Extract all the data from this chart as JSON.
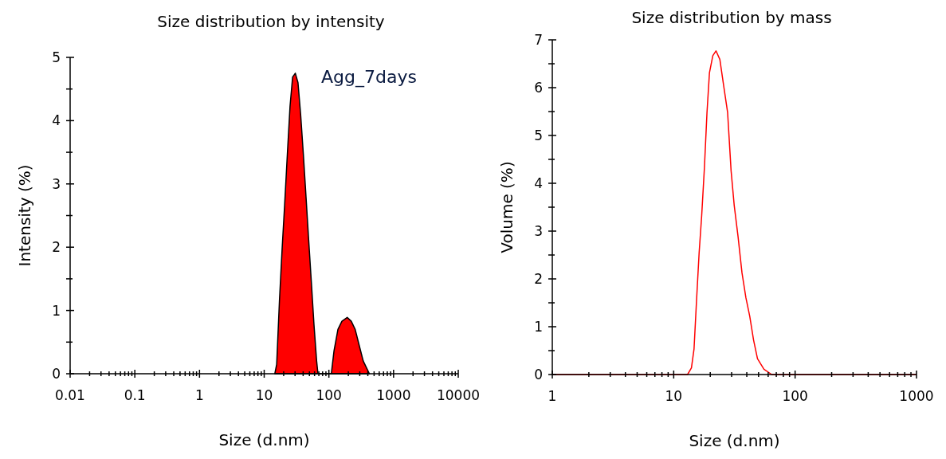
{
  "chart_data": [
    {
      "type": "area",
      "title": "Size distribution by intensity",
      "xlabel": "Size (d.nm)",
      "ylabel": "Intensity (%)",
      "log": "x",
      "annotations": [
        "Agg_7days"
      ],
      "xlim": [
        0.01,
        10000
      ],
      "ylim": [
        0,
        5
      ],
      "xticks": [
        0.01,
        {
          "value": 0.02,
          "label": null
        },
        {
          "value": 0.03,
          "label": null
        },
        {
          "value": 0.04,
          "label": null
        },
        {
          "value": 0.05,
          "label": null
        },
        {
          "value": 0.06,
          "label": null
        },
        {
          "value": 0.07,
          "label": null
        },
        {
          "value": 0.08,
          "label": null
        },
        {
          "value": 0.09,
          "label": null
        },
        0.1,
        {
          "value": 0.2,
          "label": null
        },
        {
          "value": 0.3,
          "label": null
        },
        {
          "value": 0.4,
          "label": null
        },
        {
          "value": 0.5,
          "label": null
        },
        {
          "value": 0.6,
          "label": null
        },
        {
          "value": 0.7,
          "label": null
        },
        {
          "value": 0.8,
          "label": null
        },
        {
          "value": 0.9,
          "label": null
        },
        1,
        {
          "value": 2,
          "label": null
        },
        {
          "value": 3,
          "label": null
        },
        {
          "value": 4,
          "label": null
        },
        {
          "value": 5,
          "label": null
        },
        {
          "value": 6,
          "label": null
        },
        {
          "value": 7,
          "label": null
        },
        {
          "value": 8,
          "label": null
        },
        {
          "value": 9,
          "label": null
        },
        10,
        {
          "value": 20,
          "label": null
        },
        {
          "value": 30,
          "label": null
        },
        {
          "value": 40,
          "label": null
        },
        {
          "value": 50,
          "label": null
        },
        {
          "value": 60,
          "label": null
        },
        {
          "value": 70,
          "label": null
        },
        {
          "value": 80,
          "label": null
        },
        {
          "value": 90,
          "label": null
        },
        100,
        {
          "value": 200,
          "label": null
        },
        {
          "value": 300,
          "label": null
        },
        {
          "value": 400,
          "label": null
        },
        {
          "value": 500,
          "label": null
        },
        {
          "value": 600,
          "label": null
        },
        {
          "value": 700,
          "label": null
        },
        {
          "value": 800,
          "label": null
        },
        {
          "value": 900,
          "label": null
        },
        1000,
        {
          "value": 2000,
          "label": null
        },
        {
          "value": 3000,
          "label": null
        },
        {
          "value": 4000,
          "label": null
        },
        {
          "value": 5000,
          "label": null
        },
        {
          "value": 6000,
          "label": null
        },
        {
          "value": 7000,
          "label": null
        },
        {
          "value": 8000,
          "label": null
        },
        {
          "value": 9000,
          "label": null
        },
        10000
      ],
      "yticks": [
        0,
        {
          "value": 0.5,
          "label": null
        },
        1,
        {
          "value": 1.5,
          "label": null
        },
        2,
        {
          "value": 2.5,
          "label": null
        },
        3,
        {
          "value": 3.5,
          "label": null
        },
        4,
        {
          "value": 4.5,
          "label": null
        },
        5
      ],
      "series": [
        {
          "color": "#ff0000",
          "x": [
            14.6,
            15.6,
            17.2,
            18.9,
            20.7,
            22.8,
            25.1,
            27.5,
            30.3,
            33.3,
            36.6,
            40.3,
            44.3,
            48.6,
            53.5,
            58.8,
            64.7,
            67.8,
            109,
            120,
            138,
            159,
            192,
            222,
            255,
            294,
            340,
            423
          ],
          "values": [
            0,
            0.15,
            1.15,
            1.96,
            2.67,
            3.47,
            4.23,
            4.69,
            4.75,
            4.6,
            4.1,
            3.47,
            2.8,
            2.13,
            1.46,
            0.78,
            0.2,
            0,
            0,
            0.36,
            0.7,
            0.83,
            0.89,
            0.83,
            0.7,
            0.45,
            0.2,
            0
          ]
        }
      ]
    },
    {
      "type": "line",
      "title": "Size distribution by mass",
      "xlabel": "Size (d.nm)",
      "ylabel": "Volume (%)",
      "log": "x",
      "xlim": [
        1,
        1000
      ],
      "ylim": [
        0,
        7
      ],
      "xticks": [
        1,
        {
          "value": 2,
          "label": null
        },
        {
          "value": 3,
          "label": null
        },
        {
          "value": 4,
          "label": null
        },
        {
          "value": 5,
          "label": null
        },
        {
          "value": 6,
          "label": null
        },
        {
          "value": 7,
          "label": null
        },
        {
          "value": 8,
          "label": null
        },
        {
          "value": 9,
          "label": null
        },
        10,
        {
          "value": 20,
          "label": null
        },
        {
          "value": 30,
          "label": null
        },
        {
          "value": 40,
          "label": null
        },
        {
          "value": 50,
          "label": null
        },
        {
          "value": 60,
          "label": null
        },
        {
          "value": 70,
          "label": null
        },
        {
          "value": 80,
          "label": null
        },
        {
          "value": 90,
          "label": null
        },
        100,
        {
          "value": 200,
          "label": null
        },
        {
          "value": 300,
          "label": null
        },
        {
          "value": 400,
          "label": null
        },
        {
          "value": 500,
          "label": null
        },
        {
          "value": 600,
          "label": null
        },
        {
          "value": 700,
          "label": null
        },
        {
          "value": 800,
          "label": null
        },
        {
          "value": 900,
          "label": null
        },
        1000
      ],
      "yticks": [
        0,
        {
          "value": 0.5,
          "label": null
        },
        1,
        {
          "value": 1.5,
          "label": null
        },
        2,
        {
          "value": 2.5,
          "label": null
        },
        3,
        {
          "value": 3.5,
          "label": null
        },
        4,
        {
          "value": 4.5,
          "label": null
        },
        5,
        {
          "value": 5.5,
          "label": null
        },
        6,
        {
          "value": 6.5,
          "label": null
        },
        7
      ],
      "series": [
        {
          "color": "#ff0000",
          "x": [
            1,
            13.0,
            14.0,
            14.7,
            15.4,
            16.2,
            17.0,
            17.9,
            18.8,
            19.7,
            21.0,
            22.3,
            24.0,
            25.8,
            27.8,
            29.7,
            31.5,
            33.9,
            36.5,
            39.3,
            42.3,
            45.5,
            49.0,
            55.4,
            64.2,
            1000
          ],
          "values": [
            0,
            0,
            0.14,
            0.53,
            1.52,
            2.55,
            3.32,
            4.32,
            5.48,
            6.31,
            6.67,
            6.77,
            6.59,
            6.04,
            5.48,
            4.26,
            3.54,
            2.88,
            2.13,
            1.61,
            1.22,
            0.72,
            0.33,
            0.11,
            0,
            0
          ]
        }
      ]
    }
  ]
}
